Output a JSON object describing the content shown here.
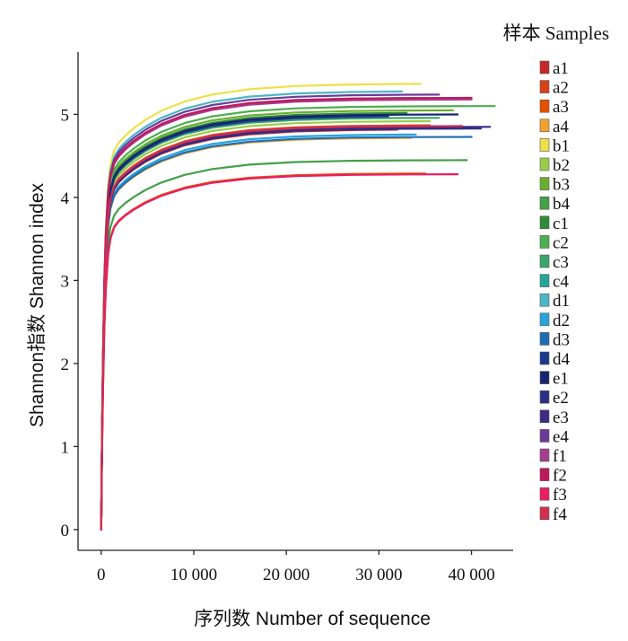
{
  "chart_data": {
    "type": "line",
    "title": "",
    "xlabel": "序列数  Number of sequence",
    "ylabel": "Shannon指数 Shannon index",
    "xlim": [
      -2500,
      44500
    ],
    "ylim": [
      -0.25,
      5.75
    ],
    "x_ticks": [
      0,
      10000,
      20000,
      30000,
      40000
    ],
    "x_tick_labels": [
      "0",
      "10 000",
      "20 000",
      "30 000",
      "40 000"
    ],
    "y_ticks": [
      0,
      1,
      2,
      3,
      4,
      5
    ],
    "y_tick_labels": [
      "0",
      "1",
      "2",
      "3",
      "4",
      "5"
    ],
    "grid": false,
    "legend": {
      "title": "样本 Samples",
      "placement": "right"
    },
    "series": [
      {
        "name": "a1",
        "color": "#c62828",
        "plateau": 4.82,
        "x_end": 32000
      },
      {
        "name": "a2",
        "color": "#d84315",
        "plateau": 4.87,
        "x_end": 35500
      },
      {
        "name": "a3",
        "color": "#e65100",
        "plateau": 4.29,
        "x_end": 35000
      },
      {
        "name": "a4",
        "color": "#f2a22c",
        "plateau": 4.72,
        "x_end": 33500
      },
      {
        "name": "b1",
        "color": "#eee04a",
        "plateau": 5.37,
        "x_end": 34500
      },
      {
        "name": "b2",
        "color": "#9ccc4a",
        "plateau": 4.92,
        "x_end": 35500
      },
      {
        "name": "b3",
        "color": "#6ab02e",
        "plateau": 5.05,
        "x_end": 38000
      },
      {
        "name": "b4",
        "color": "#43a047",
        "plateau": 4.45,
        "x_end": 39500
      },
      {
        "name": "c1",
        "color": "#2e8b3a",
        "plateau": 5.02,
        "x_end": 33000
      },
      {
        "name": "c2",
        "color": "#4caf50",
        "plateau": 5.1,
        "x_end": 42500
      },
      {
        "name": "c3",
        "color": "#3aa56a",
        "plateau": 4.96,
        "x_end": 36500
      },
      {
        "name": "c4",
        "color": "#26a69a",
        "plateau": 5.2,
        "x_end": 34000
      },
      {
        "name": "d1",
        "color": "#4db6c6",
        "plateau": 5.28,
        "x_end": 32500
      },
      {
        "name": "d2",
        "color": "#29a3d9",
        "plateau": 4.76,
        "x_end": 34000
      },
      {
        "name": "d3",
        "color": "#1e6db5",
        "plateau": 4.73,
        "x_end": 40000
      },
      {
        "name": "d4",
        "color": "#1a3b8c",
        "plateau": 4.98,
        "x_end": 31000
      },
      {
        "name": "e1",
        "color": "#16246e",
        "plateau": 5.0,
        "x_end": 38500
      },
      {
        "name": "e2",
        "color": "#2c2f86",
        "plateau": 4.83,
        "x_end": 41000
      },
      {
        "name": "e3",
        "color": "#3f2a84",
        "plateau": 4.85,
        "x_end": 42000
      },
      {
        "name": "e4",
        "color": "#6a3b98",
        "plateau": 5.24,
        "x_end": 36500
      },
      {
        "name": "f1",
        "color": "#a43f8e",
        "plateau": 5.18,
        "x_end": 40000
      },
      {
        "name": "f2",
        "color": "#c2185b",
        "plateau": 5.2,
        "x_end": 40000
      },
      {
        "name": "f3",
        "color": "#e91e63",
        "plateau": 4.28,
        "x_end": 38500
      },
      {
        "name": "f4",
        "color": "#d32f4f",
        "plateau": 4.86,
        "x_end": 39000
      }
    ]
  }
}
